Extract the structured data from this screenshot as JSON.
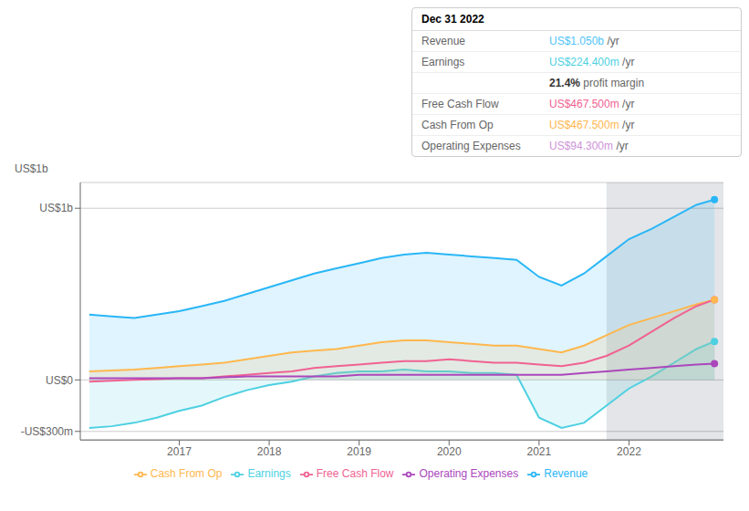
{
  "chart_data": {
    "type": "line",
    "y_label": "US$1b",
    "annotations": [
      {
        "text": "Dec 31 2022"
      },
      {
        "label": "Revenue",
        "value": "US$1.050b",
        "suffix": " /yr",
        "color": "#4fc3f7"
      },
      {
        "label": "Earnings",
        "value": "US$224.400m",
        "suffix": " /yr",
        "color": "#4dd0e1"
      },
      {
        "value": "21.4%",
        "suffix": " profit margin",
        "color": "#ffffff"
      },
      {
        "label": "Free Cash Flow",
        "value": "US$467.500m",
        "suffix": " /yr",
        "color": "#f06292"
      },
      {
        "label": "Cash From Op",
        "value": "US$467.500m",
        "suffix": " /yr",
        "color": "#ffb74d"
      },
      {
        "label": "Operating Expenses",
        "value": "US$94.300m",
        "suffix": " /yr",
        "color": "#ce93d8"
      }
    ],
    "x": [
      2016.0,
      2016.25,
      2016.5,
      2016.75,
      2017.0,
      2017.25,
      2017.5,
      2017.75,
      2018.0,
      2018.25,
      2018.5,
      2018.75,
      2019.0,
      2019.25,
      2019.5,
      2019.75,
      2020.0,
      2020.25,
      2020.5,
      2020.75,
      2021.0,
      2021.25,
      2021.5,
      2021.75,
      2022.0,
      2022.25,
      2022.5,
      2022.75,
      2022.95
    ],
    "series": [
      {
        "name": "Revenue",
        "type": "area",
        "color": "#29b6f6",
        "values": [
          0.38,
          0.37,
          0.36,
          0.38,
          0.4,
          0.43,
          0.46,
          0.5,
          0.54,
          0.58,
          0.62,
          0.65,
          0.68,
          0.71,
          0.73,
          0.74,
          0.73,
          0.72,
          0.71,
          0.7,
          0.6,
          0.55,
          0.62,
          0.72,
          0.82,
          0.88,
          0.95,
          1.02,
          1.05
        ]
      },
      {
        "name": "Earnings",
        "type": "area",
        "color": "#4dd0e1",
        "values": [
          -0.28,
          -0.27,
          -0.25,
          -0.22,
          -0.18,
          -0.15,
          -0.1,
          -0.06,
          -0.03,
          -0.01,
          0.02,
          0.04,
          0.05,
          0.05,
          0.06,
          0.05,
          0.05,
          0.04,
          0.04,
          0.03,
          -0.22,
          -0.28,
          -0.25,
          -0.15,
          -0.05,
          0.02,
          0.1,
          0.18,
          0.224
        ]
      },
      {
        "name": "Free Cash Flow",
        "type": "line",
        "color": "#f06292",
        "values": [
          -0.01,
          -0.005,
          0.0,
          0.005,
          0.01,
          0.01,
          0.02,
          0.03,
          0.04,
          0.05,
          0.07,
          0.08,
          0.09,
          0.1,
          0.11,
          0.11,
          0.12,
          0.11,
          0.1,
          0.1,
          0.09,
          0.08,
          0.1,
          0.14,
          0.2,
          0.28,
          0.36,
          0.43,
          0.4675
        ]
      },
      {
        "name": "Cash From Op",
        "type": "area",
        "color": "#ffb74d",
        "values": [
          0.05,
          0.055,
          0.06,
          0.07,
          0.08,
          0.09,
          0.1,
          0.12,
          0.14,
          0.16,
          0.17,
          0.18,
          0.2,
          0.22,
          0.23,
          0.23,
          0.22,
          0.21,
          0.2,
          0.2,
          0.18,
          0.16,
          0.2,
          0.26,
          0.32,
          0.36,
          0.4,
          0.44,
          0.4675
        ]
      },
      {
        "name": "Operating Expenses",
        "type": "line",
        "color": "#ab47bc",
        "values": [
          0.01,
          0.01,
          0.01,
          0.01,
          0.01,
          0.01,
          0.015,
          0.02,
          0.02,
          0.02,
          0.02,
          0.02,
          0.03,
          0.03,
          0.03,
          0.03,
          0.03,
          0.03,
          0.03,
          0.03,
          0.03,
          0.03,
          0.04,
          0.05,
          0.06,
          0.07,
          0.08,
          0.09,
          0.0943
        ]
      }
    ],
    "highlight": {
      "x": 2021.75,
      "color": "#1a2744"
    },
    "xlim": [
      2015.9,
      2023.05
    ],
    "xticks": [
      2017,
      2018,
      2019,
      2020,
      2021,
      2022
    ],
    "ylim": [
      -0.35,
      1.15
    ],
    "yticks": [
      {
        "value": -0.3,
        "label": "-US$300m"
      },
      {
        "value": 0.0,
        "label": "US$0"
      },
      {
        "value": 1.0,
        "label": "US$1b"
      }
    ],
    "grid": true,
    "legend": "bottom"
  }
}
